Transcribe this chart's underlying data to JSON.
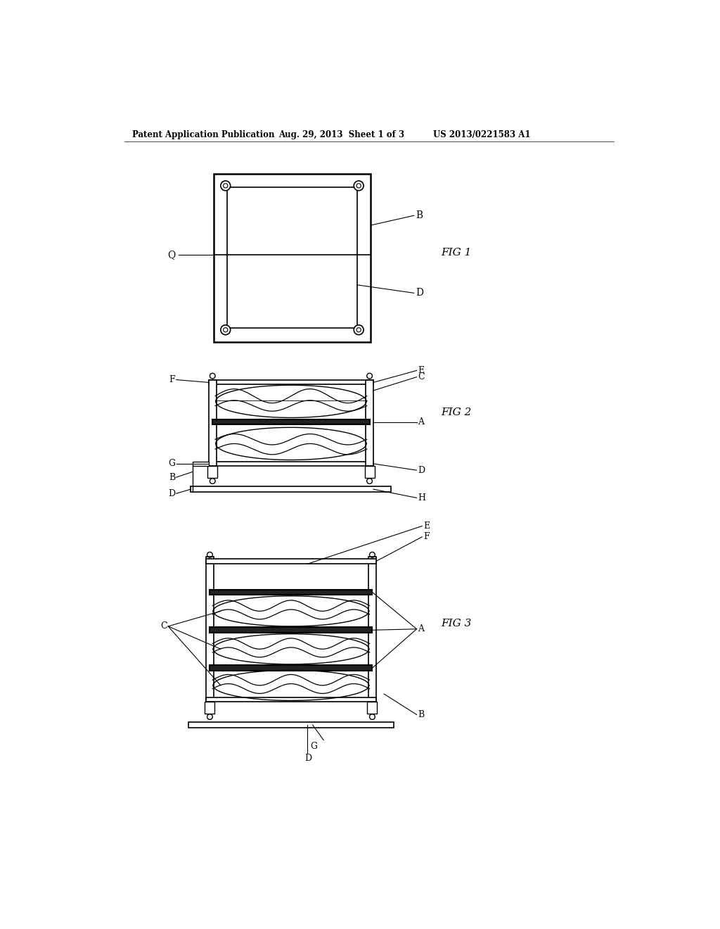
{
  "bg_color": "#ffffff",
  "lc": "#000000",
  "header_left": "Patent Application Publication",
  "header_mid": "Aug. 29, 2013  Sheet 1 of 3",
  "header_right": "US 2013/0221583 A1",
  "fig1_label": "FIG 1",
  "fig2_label": "FIG 2",
  "fig3_label": "FIG 3"
}
